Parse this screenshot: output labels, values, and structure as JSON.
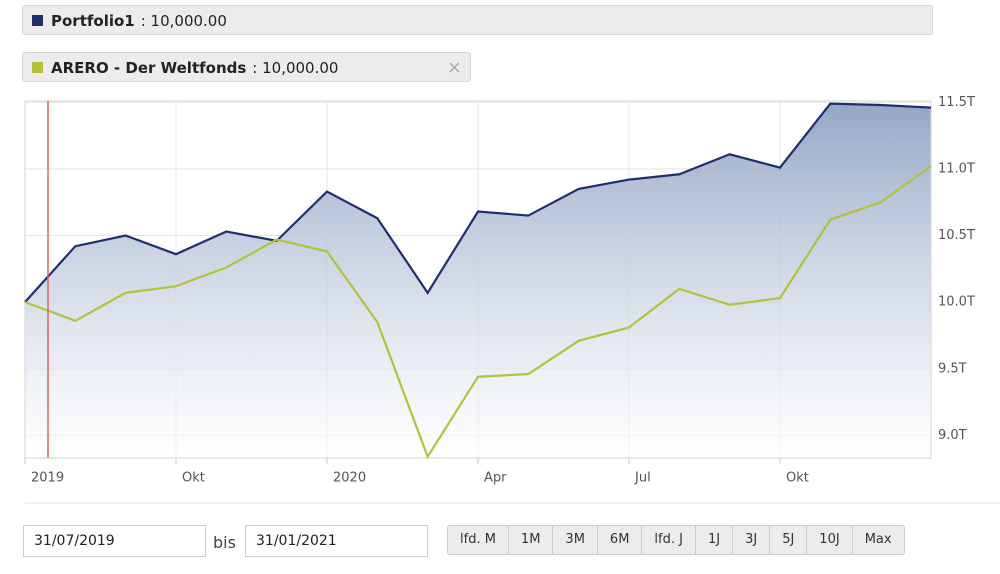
{
  "chart_data": {
    "type": "line",
    "categories": [
      "2019",
      null,
      null,
      "Okt",
      null,
      null,
      "2020",
      null,
      null,
      "Apr",
      null,
      null,
      "Jul",
      null,
      null,
      "Okt",
      null,
      null,
      null
    ],
    "series": [
      {
        "name": "Portfolio1",
        "color": "#1f2f6e",
        "values": [
          10.0,
          10.42,
          10.5,
          10.36,
          10.53,
          10.46,
          10.83,
          10.63,
          10.07,
          10.68,
          10.65,
          10.85,
          10.92,
          10.96,
          11.11,
          11.01,
          11.49,
          11.48,
          11.46
        ]
      },
      {
        "name": "ARERO - Der Weltfonds",
        "color": "#b3c23c",
        "values": [
          10.0,
          9.86,
          10.07,
          10.12,
          10.26,
          10.47,
          10.38,
          9.85,
          8.84,
          9.44,
          9.46,
          9.71,
          9.81,
          10.1,
          9.98,
          10.03,
          10.62,
          10.75,
          11.02
        ]
      }
    ],
    "legend_values": [
      ": 10,000.00",
      ": 10,000.00"
    ],
    "ylim": [
      8.83,
      11.51
    ],
    "yticks": [
      {
        "value": 9.0,
        "label": "9.0T"
      },
      {
        "value": 9.5,
        "label": "9.5T"
      },
      {
        "value": 10.0,
        "label": "10.0T"
      },
      {
        "value": 10.5,
        "label": "10.5T"
      },
      {
        "value": 11.0,
        "label": "11.0T"
      },
      {
        "value": 11.5,
        "label": "11.5T"
      }
    ],
    "grid": true
  },
  "controls": {
    "date_from": "31/07/2019",
    "separator": "bis",
    "date_to": "31/01/2021",
    "buttons": [
      "lfd. M",
      "1M",
      "3M",
      "6M",
      "lfd. J",
      "1J",
      "3J",
      "5J",
      "10J",
      "Max"
    ]
  }
}
